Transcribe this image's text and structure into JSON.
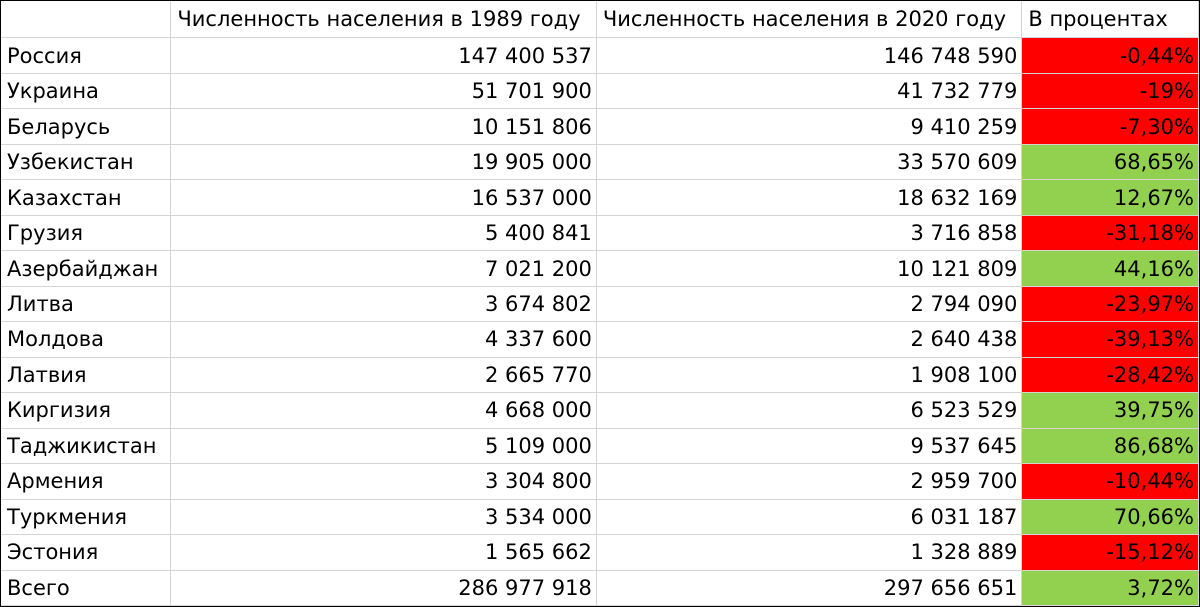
{
  "table": {
    "headers": [
      "",
      "Численность населения в 1989 году",
      "Численность населения в 2020 году",
      "В процентах"
    ],
    "rows": [
      {
        "country": "Россия",
        "pop1989": "147 400 537",
        "pop2020": "146 748 590",
        "percent": "-0,44%",
        "status": "neg"
      },
      {
        "country": "Украина",
        "pop1989": "51 701 900",
        "pop2020": "41 732 779",
        "percent": "-19%",
        "status": "neg"
      },
      {
        "country": "Беларусь",
        "pop1989": "10 151 806",
        "pop2020": "9 410 259",
        "percent": "-7,30%",
        "status": "neg"
      },
      {
        "country": "Узбекистан",
        "pop1989": "19 905 000",
        "pop2020": "33 570 609",
        "percent": "68,65%",
        "status": "pos"
      },
      {
        "country": "Казахстан",
        "pop1989": "16 537 000",
        "pop2020": "18 632 169",
        "percent": "12,67%",
        "status": "pos"
      },
      {
        "country": "Грузия",
        "pop1989": "5 400 841",
        "pop2020": "3 716 858",
        "percent": "-31,18%",
        "status": "neg"
      },
      {
        "country": "Азербайджан",
        "pop1989": "7 021 200",
        "pop2020": "10 121 809",
        "percent": "44,16%",
        "status": "pos"
      },
      {
        "country": "Литва",
        "pop1989": "3 674 802",
        "pop2020": "2 794 090",
        "percent": "-23,97%",
        "status": "neg"
      },
      {
        "country": "Молдова",
        "pop1989": "4 337 600",
        "pop2020": "2 640 438",
        "percent": "-39,13%",
        "status": "neg"
      },
      {
        "country": "Латвия",
        "pop1989": "2 665 770",
        "pop2020": "1 908 100",
        "percent": "-28,42%",
        "status": "neg"
      },
      {
        "country": "Киргизия",
        "pop1989": "4 668 000",
        "pop2020": "6 523 529",
        "percent": "39,75%",
        "status": "pos"
      },
      {
        "country": "Таджикистан",
        "pop1989": "5 109 000",
        "pop2020": "9 537 645",
        "percent": "86,68%",
        "status": "pos"
      },
      {
        "country": "Армения",
        "pop1989": "3 304 800",
        "pop2020": "2 959 700",
        "percent": "-10,44%",
        "status": "neg"
      },
      {
        "country": "Туркмения",
        "pop1989": "3 534 000",
        "pop2020": "6 031 187",
        "percent": "70,66%",
        "status": "pos"
      },
      {
        "country": "Эстония",
        "pop1989": "1 565 662",
        "pop2020": "1 328 889",
        "percent": "-15,12%",
        "status": "neg"
      },
      {
        "country": "Всего",
        "pop1989": "286 977 918",
        "pop2020": "297 656 651",
        "percent": "3,72%",
        "status": "pos"
      }
    ]
  },
  "colors": {
    "negative_fill": "#ff0000",
    "positive_fill": "#92d050",
    "gridline": "#d4d4d4"
  }
}
